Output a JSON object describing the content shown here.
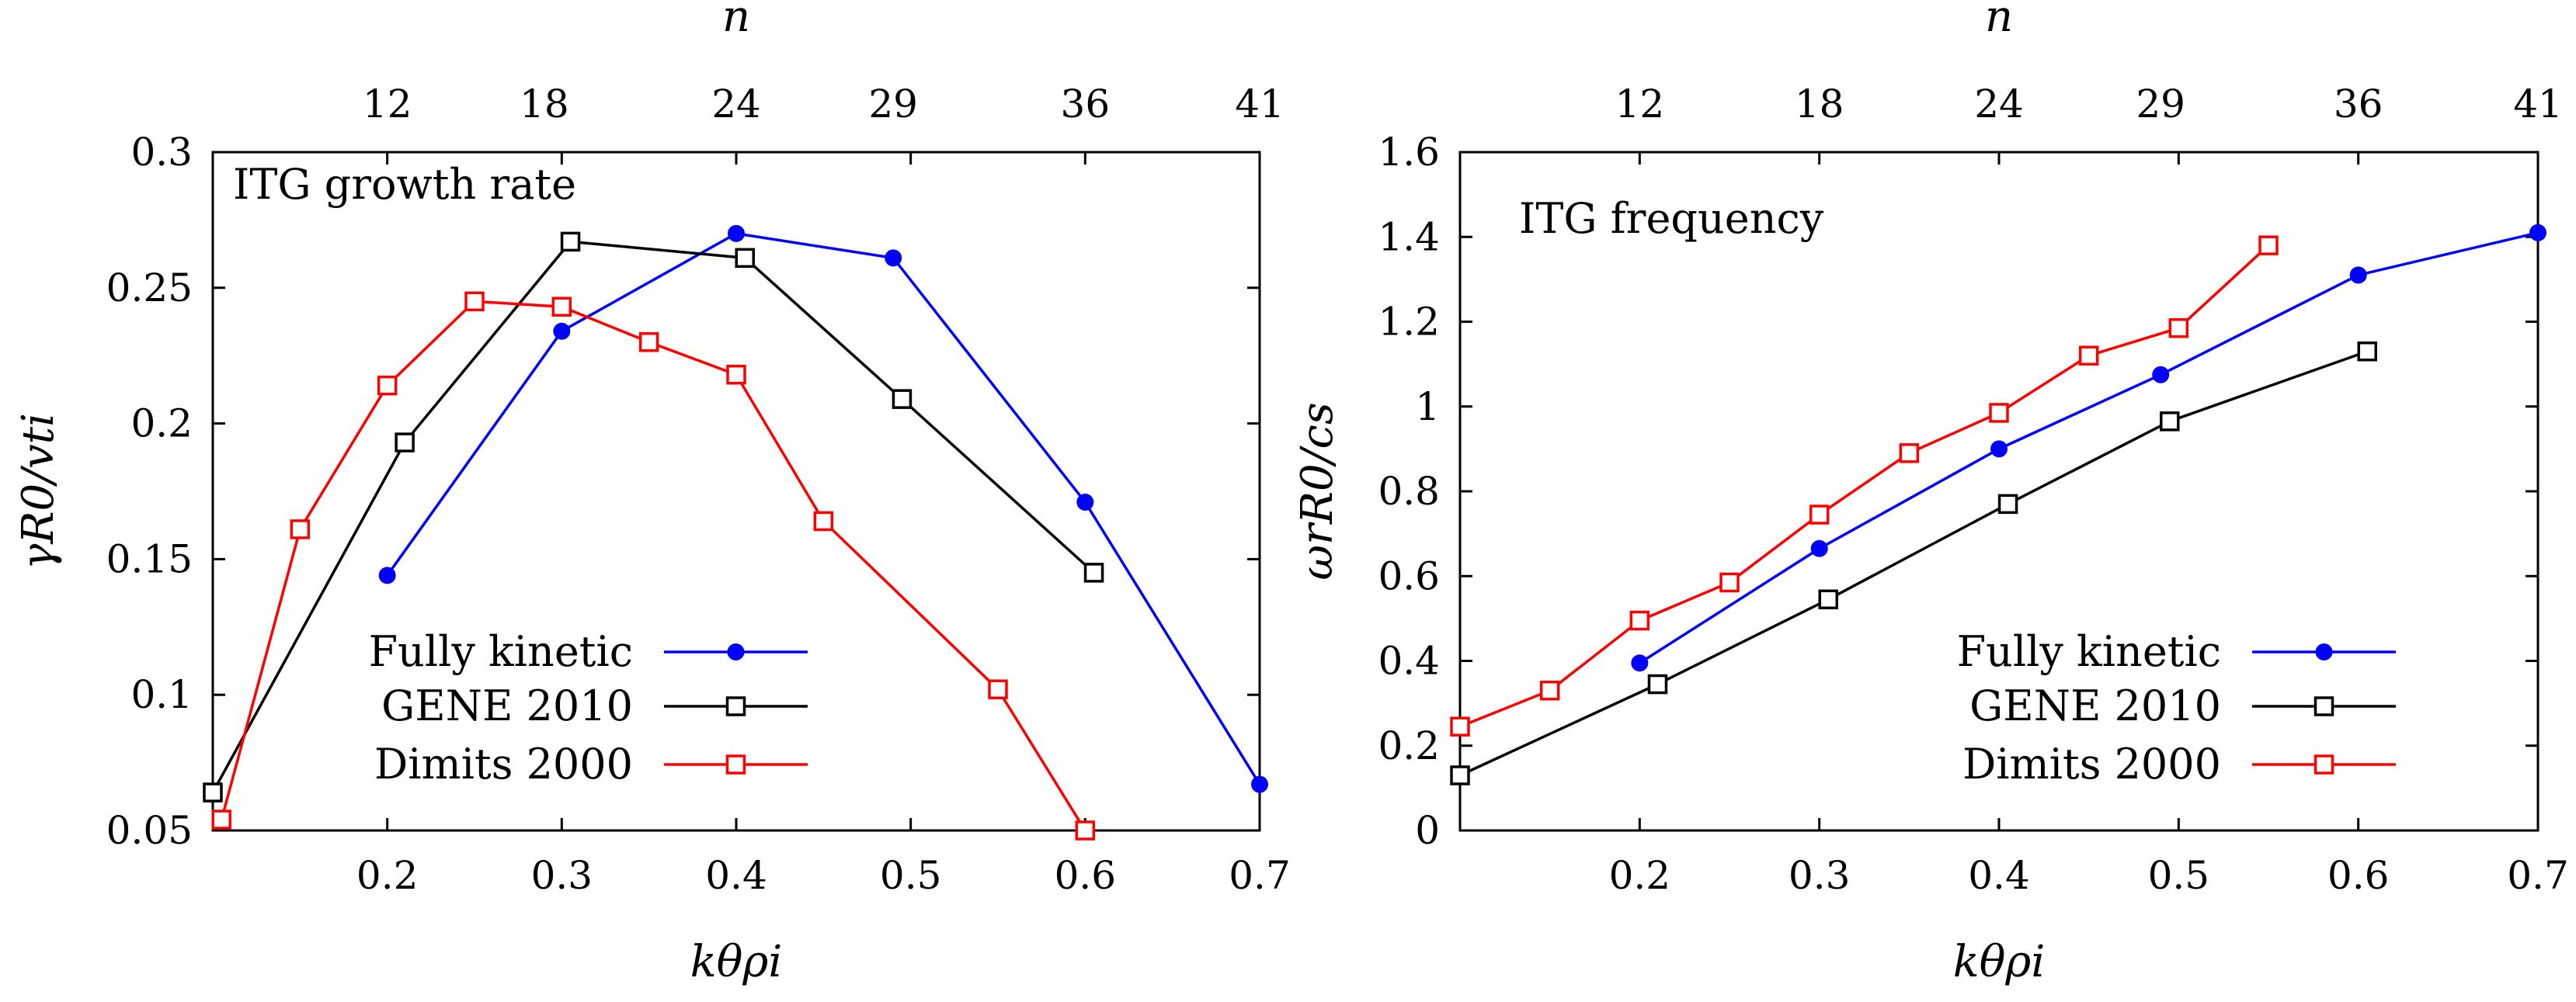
{
  "chart_data": [
    {
      "type": "line",
      "title": "ITG growth rate",
      "xlabel": "kθρi",
      "ylabel": "γR0/vti",
      "top_xlabel": "n",
      "xlim": [
        0.1,
        0.7
      ],
      "ylim": [
        0.05,
        0.3
      ],
      "xticks": [
        "0.2",
        "0.3",
        "0.4",
        "0.5",
        "0.6",
        "0.7"
      ],
      "xtick_values": [
        0.2,
        0.3,
        0.4,
        0.5,
        0.6,
        0.7
      ],
      "yticks": [
        "0.05",
        "0.1",
        "0.15",
        "0.2",
        "0.25",
        "0.3"
      ],
      "ytick_values": [
        0.05,
        0.1,
        0.15,
        0.2,
        0.25,
        0.3
      ],
      "top_ticks": [
        "12",
        "18",
        "24",
        "29",
        "36",
        "41"
      ],
      "top_tick_values": [
        0.2,
        0.29,
        0.4,
        0.49,
        0.6,
        0.7
      ],
      "legend_position": "bottom-left",
      "series": [
        {
          "name": "Fully kinetic",
          "color": "#0000ff",
          "marker": "circle",
          "x": [
            0.2,
            0.3,
            0.4,
            0.49,
            0.6,
            0.7
          ],
          "y": [
            0.144,
            0.234,
            0.27,
            0.261,
            0.171,
            0.067
          ]
        },
        {
          "name": "GENE 2010",
          "color": "#000000",
          "marker": "square",
          "x": [
            0.1,
            0.21,
            0.305,
            0.405,
            0.495,
            0.605
          ],
          "y": [
            0.064,
            0.193,
            0.267,
            0.261,
            0.209,
            0.145
          ]
        },
        {
          "name": "Dimits 2000",
          "color": "#ff0000",
          "marker": "square",
          "x": [
            0.105,
            0.15,
            0.2,
            0.25,
            0.3,
            0.35,
            0.4,
            0.45,
            0.55,
            0.6
          ],
          "y": [
            0.054,
            0.161,
            0.214,
            0.245,
            0.243,
            0.23,
            0.218,
            0.164,
            0.102,
            0.05
          ]
        }
      ]
    },
    {
      "type": "line",
      "title": "ITG frequency",
      "xlabel": "kθρi",
      "ylabel": "ωrR0/cs",
      "top_xlabel": "n",
      "xlim": [
        0.1,
        0.7
      ],
      "ylim": [
        0,
        1.6
      ],
      "xticks": [
        "0.2",
        "0.3",
        "0.4",
        "0.5",
        "0.6",
        "0.7"
      ],
      "xtick_values": [
        0.2,
        0.3,
        0.4,
        0.5,
        0.6,
        0.7
      ],
      "yticks": [
        "0",
        "0.2",
        "0.4",
        "0.6",
        "0.8",
        "1",
        "1.2",
        "1.4",
        "1.6"
      ],
      "ytick_values": [
        0,
        0.2,
        0.4,
        0.6,
        0.8,
        1,
        1.2,
        1.4,
        1.6
      ],
      "top_ticks": [
        "12",
        "18",
        "24",
        "29",
        "36",
        "41"
      ],
      "top_tick_values": [
        0.2,
        0.3,
        0.4,
        0.49,
        0.6,
        0.7
      ],
      "legend_position": "bottom-right",
      "series": [
        {
          "name": "Fully kinetic",
          "color": "#0000ff",
          "marker": "circle",
          "x": [
            0.2,
            0.3,
            0.4,
            0.49,
            0.6,
            0.7
          ],
          "y": [
            0.395,
            0.665,
            0.9,
            1.075,
            1.31,
            1.41
          ]
        },
        {
          "name": "GENE 2010",
          "color": "#000000",
          "marker": "square",
          "x": [
            0.1,
            0.21,
            0.305,
            0.405,
            0.495,
            0.605
          ],
          "y": [
            0.13,
            0.345,
            0.545,
            0.77,
            0.965,
            1.13
          ]
        },
        {
          "name": "Dimits 2000",
          "color": "#ff0000",
          "marker": "square",
          "x": [
            0.1,
            0.15,
            0.2,
            0.25,
            0.3,
            0.35,
            0.4,
            0.45,
            0.5,
            0.55
          ],
          "y": [
            0.245,
            0.33,
            0.495,
            0.585,
            0.745,
            0.89,
            0.985,
            1.12,
            1.185,
            1.38
          ]
        }
      ]
    }
  ]
}
